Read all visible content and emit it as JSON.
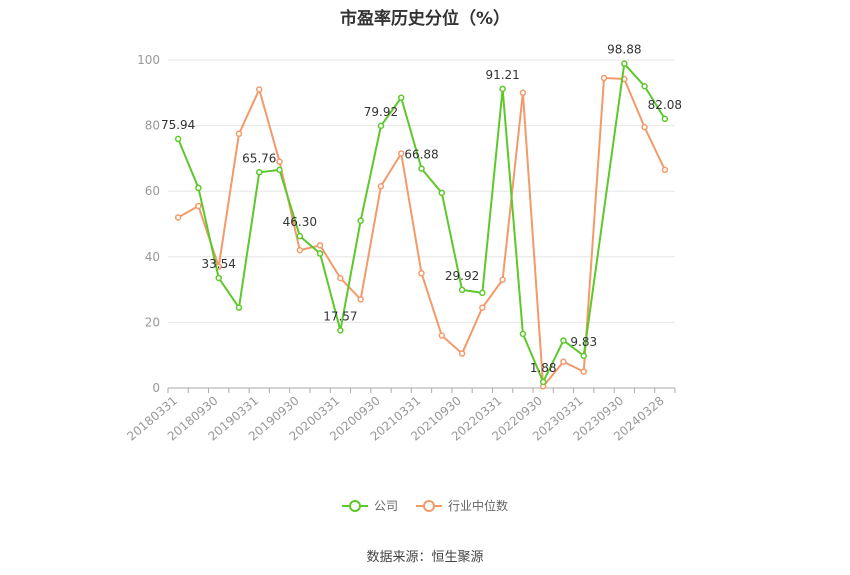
{
  "page": {
    "title": "市盈率历史分位（%）",
    "source": "数据来源：恒生聚源"
  },
  "colors": {
    "company": "#5cc82a",
    "industry": "#f39a6b",
    "axis": "#aaaaaa",
    "grid": "#e6e6e6",
    "tick_text": "#999999",
    "label_text": "#333333"
  },
  "chart_data": {
    "type": "line",
    "title": "市盈率历史分位（%）",
    "ylim": [
      0,
      100
    ],
    "yticks": [
      0,
      20,
      40,
      60,
      80,
      100
    ],
    "grid": true,
    "legend_position": "bottom-center",
    "x": [
      "20180331",
      "20180630",
      "20180930",
      "20181231",
      "20190331",
      "20190630",
      "20190930",
      "20191231",
      "20200331",
      "20200630",
      "20200930",
      "20201231",
      "20210331",
      "20210630",
      "20210930",
      "20211231",
      "20220331",
      "20220630",
      "20220930",
      "20221231",
      "20230331",
      "20230630",
      "20230930",
      "20231231",
      "20240328"
    ],
    "xtick_labels": [
      "20180331",
      "20180930",
      "20190331",
      "20190930",
      "20200331",
      "20200930",
      "20210331",
      "20210930",
      "20220331",
      "20220930",
      "20230331",
      "20230930",
      "20240328"
    ],
    "series": [
      {
        "name": "公司",
        "values": [
          75.94,
          61,
          33.54,
          24.5,
          65.76,
          66.5,
          46.3,
          41,
          17.57,
          51,
          79.92,
          88.5,
          66.88,
          59.5,
          29.92,
          29,
          91.21,
          16.5,
          1.88,
          14.5,
          9.83,
          null,
          98.88,
          92,
          82.08
        ]
      },
      {
        "name": "行业中位数",
        "values": [
          52,
          55.5,
          37,
          77.5,
          91,
          69,
          42,
          43.5,
          33.5,
          27,
          61.5,
          71.5,
          35,
          16,
          10.5,
          24.5,
          33,
          90,
          0.5,
          8,
          5,
          94.5,
          94.2,
          79.5,
          66.5
        ]
      }
    ],
    "data_labels": [
      {
        "series": 0,
        "index": 0,
        "text": "75.94"
      },
      {
        "series": 0,
        "index": 2,
        "text": "33.54"
      },
      {
        "series": 0,
        "index": 4,
        "text": "65.76"
      },
      {
        "series": 0,
        "index": 6,
        "text": "46.30"
      },
      {
        "series": 0,
        "index": 8,
        "text": "17.57"
      },
      {
        "series": 0,
        "index": 10,
        "text": "79.92"
      },
      {
        "series": 0,
        "index": 12,
        "text": "66.88"
      },
      {
        "series": 0,
        "index": 14,
        "text": "29.92"
      },
      {
        "series": 0,
        "index": 16,
        "text": "91.21"
      },
      {
        "series": 0,
        "index": 18,
        "text": "1.88"
      },
      {
        "series": 0,
        "index": 20,
        "text": "9.83"
      },
      {
        "series": 0,
        "index": 22,
        "text": "98.88"
      },
      {
        "series": 0,
        "index": 24,
        "text": "82.08"
      }
    ]
  }
}
